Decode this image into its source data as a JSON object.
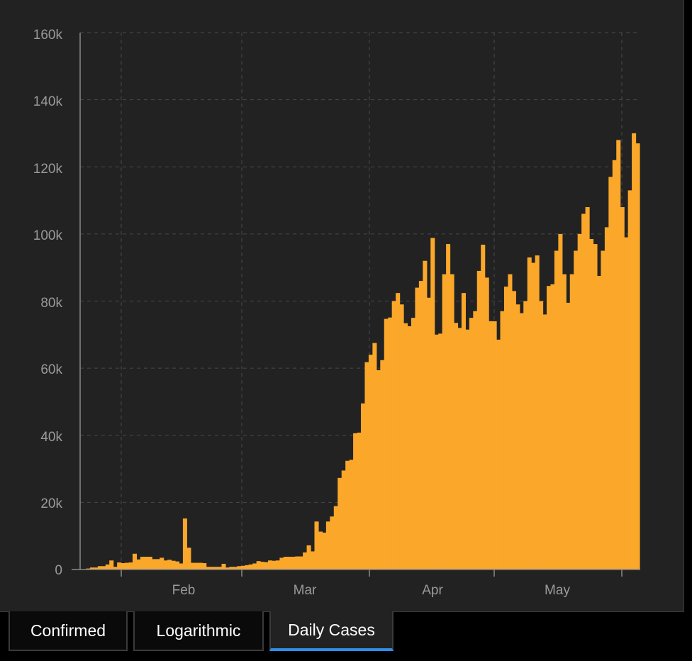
{
  "chart_data": {
    "type": "bar",
    "title": "",
    "xlabel": "",
    "ylabel": "",
    "bar_color": "#FAA72A",
    "background": "#222222",
    "grid": true,
    "x_tick_labels": [
      "Feb",
      "Mar",
      "Apr",
      "May"
    ],
    "y_tick_labels": [
      "0",
      "20k",
      "40k",
      "60k",
      "80k",
      "100k",
      "120k",
      "140k",
      "160k"
    ],
    "ylim": [
      0,
      160000
    ],
    "values": [
      100,
      300,
      600,
      600,
      1000,
      1000,
      1500,
      2700,
      800,
      2100,
      1900,
      2000,
      2100,
      4700,
      3000,
      3800,
      3800,
      3800,
      3100,
      3100,
      3500,
      2700,
      2900,
      2600,
      2400,
      1800,
      15200,
      6500,
      2000,
      2000,
      2000,
      1900,
      800,
      800,
      800,
      800,
      1700,
      600,
      800,
      800,
      1000,
      1100,
      1300,
      1500,
      1800,
      2500,
      2300,
      2200,
      2700,
      2600,
      2700,
      3500,
      3800,
      3800,
      3800,
      3900,
      3900,
      5100,
      7200,
      5400,
      14300,
      11300,
      11000,
      14300,
      15800,
      18900,
      27300,
      29500,
      32400,
      32700,
      40600,
      40800,
      49500,
      61800,
      64000,
      67500,
      59400,
      62400,
      74700,
      75100,
      80000,
      82400,
      79000,
      73400,
      72500,
      75000,
      84000,
      86000,
      92000,
      81000,
      98800,
      70000,
      70300,
      88000,
      97000,
      88000,
      73500,
      72000,
      82400,
      71500,
      75000,
      77000,
      89000,
      96800,
      87000,
      74000,
      74000,
      68500,
      77000,
      84300,
      88000,
      83000,
      79000,
      76400,
      80000,
      93000,
      91400,
      93600,
      80000,
      76000,
      84500,
      85000,
      95000,
      100000,
      88000,
      79500,
      88000,
      95000,
      100000,
      106000,
      108000,
      98500,
      97000,
      87500,
      95000,
      102000,
      117000,
      122000,
      128000,
      108000,
      99000,
      113000,
      130000,
      127000
    ]
  },
  "tabs": [
    {
      "label": "Confirmed",
      "active": false
    },
    {
      "label": "Logarithmic",
      "active": false
    },
    {
      "label": "Daily Cases",
      "active": true
    }
  ],
  "colors": {
    "accent": "#2F8FE8",
    "bar": "#FAA72A",
    "panel": "#222222",
    "page": "#000000"
  }
}
